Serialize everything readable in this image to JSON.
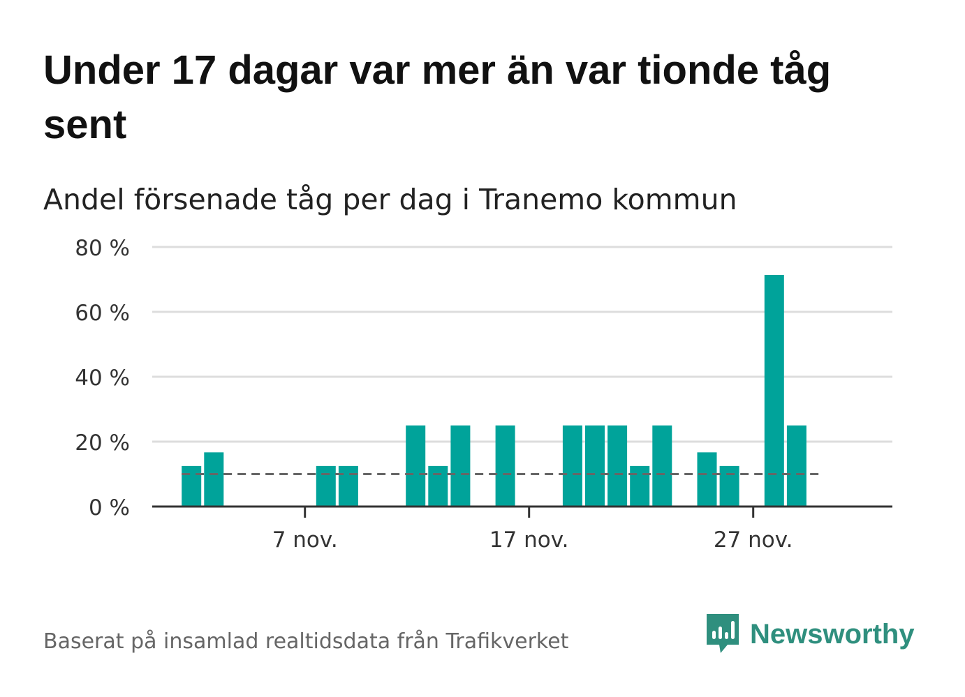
{
  "title": "Under 17 dagar var mer än var tionde tåg sent",
  "subtitle": "Andel försenade tåg per dag i Tranemo kommun",
  "source": "Baserat på insamlad realtidsdata från Trafikverket",
  "brand": {
    "name": "Newsworthy",
    "icon": "newsworthy-logo-icon",
    "color": "#2f8f7e"
  },
  "colors": {
    "bar": "#00a39a",
    "grid": "#dddddd",
    "axis": "#333333",
    "reference": "#666666"
  },
  "chart_data": {
    "type": "bar",
    "title": "Andel försenade tåg per dag i Tranemo kommun",
    "xlabel": "",
    "ylabel": "",
    "ylim": [
      0,
      80
    ],
    "yticks": [
      0,
      20,
      40,
      60,
      80
    ],
    "ytick_labels": [
      "0 %",
      "20 %",
      "40 %",
      "60 %",
      "80 %"
    ],
    "x_domain_days": [
      0,
      32
    ],
    "xticks": [
      {
        "day": 7,
        "label": "7 nov."
      },
      {
        "day": 17,
        "label": "17 nov."
      },
      {
        "day": 27,
        "label": "27 nov."
      }
    ],
    "reference_line": {
      "value": 10,
      "style": "dashed",
      "from_day": 1.5,
      "to_day": 29.5
    },
    "bars": [
      {
        "day": 2,
        "value": 12.5
      },
      {
        "day": 3,
        "value": 16.7
      },
      {
        "day": 8,
        "value": 12.5
      },
      {
        "day": 9,
        "value": 12.5
      },
      {
        "day": 12,
        "value": 25
      },
      {
        "day": 13,
        "value": 12.5
      },
      {
        "day": 14,
        "value": 25
      },
      {
        "day": 16,
        "value": 25
      },
      {
        "day": 19,
        "value": 25
      },
      {
        "day": 20,
        "value": 25
      },
      {
        "day": 21,
        "value": 25
      },
      {
        "day": 22,
        "value": 12.5
      },
      {
        "day": 23,
        "value": 25
      },
      {
        "day": 25,
        "value": 16.7
      },
      {
        "day": 26,
        "value": 12.5
      },
      {
        "day": 28,
        "value": 71.4
      },
      {
        "day": 29,
        "value": 25
      }
    ]
  }
}
